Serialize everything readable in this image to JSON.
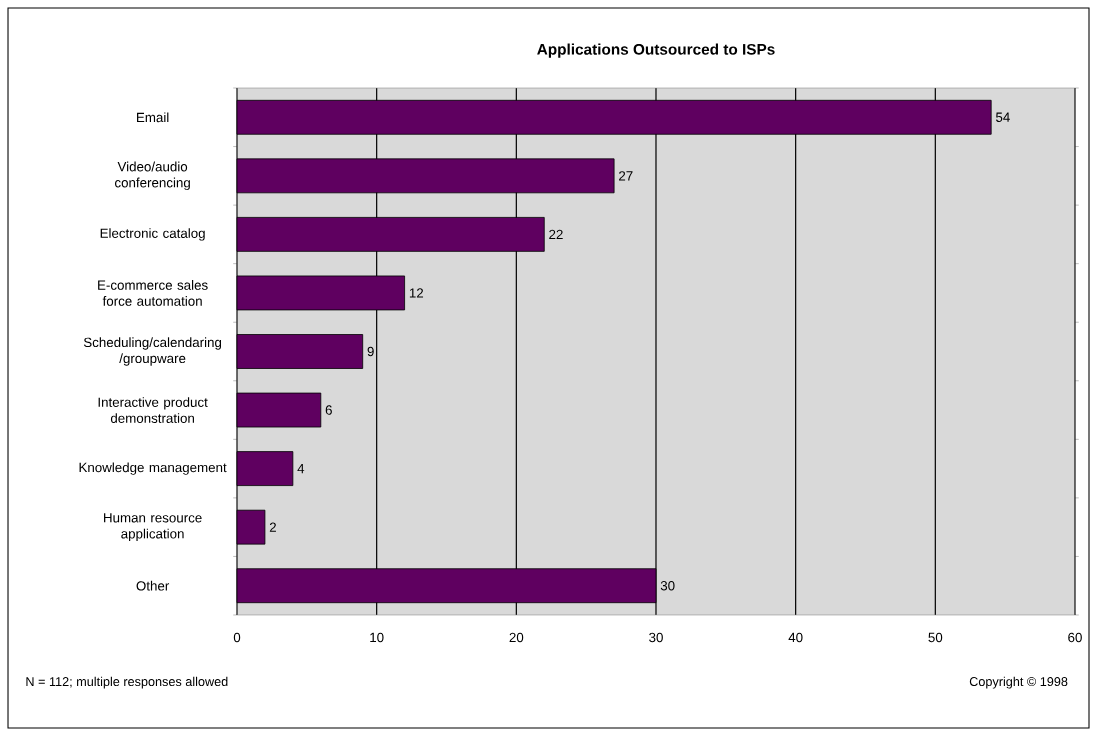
{
  "chart_data": {
    "type": "bar",
    "orientation": "horizontal",
    "title": "Applications Outsourced to ISPs",
    "categories": [
      "Email",
      "Video/audio conferencing",
      "Electronic catalog",
      "E-commerce sales force automation",
      "Scheduling/calendaring /groupware",
      "Interactive product demonstration",
      "Knowledge management",
      "Human resource application",
      "Other"
    ],
    "values": [
      54,
      27,
      22,
      12,
      9,
      6,
      4,
      2,
      30
    ],
    "color": "#5f0060",
    "xlim": [
      0,
      60
    ],
    "xticks": [
      0,
      10,
      20,
      30,
      40,
      50,
      60
    ],
    "grid": "x",
    "data_labels": true,
    "annotations": [
      "N = 112; multiple responses allowed",
      "Copyright © 1998"
    ]
  }
}
